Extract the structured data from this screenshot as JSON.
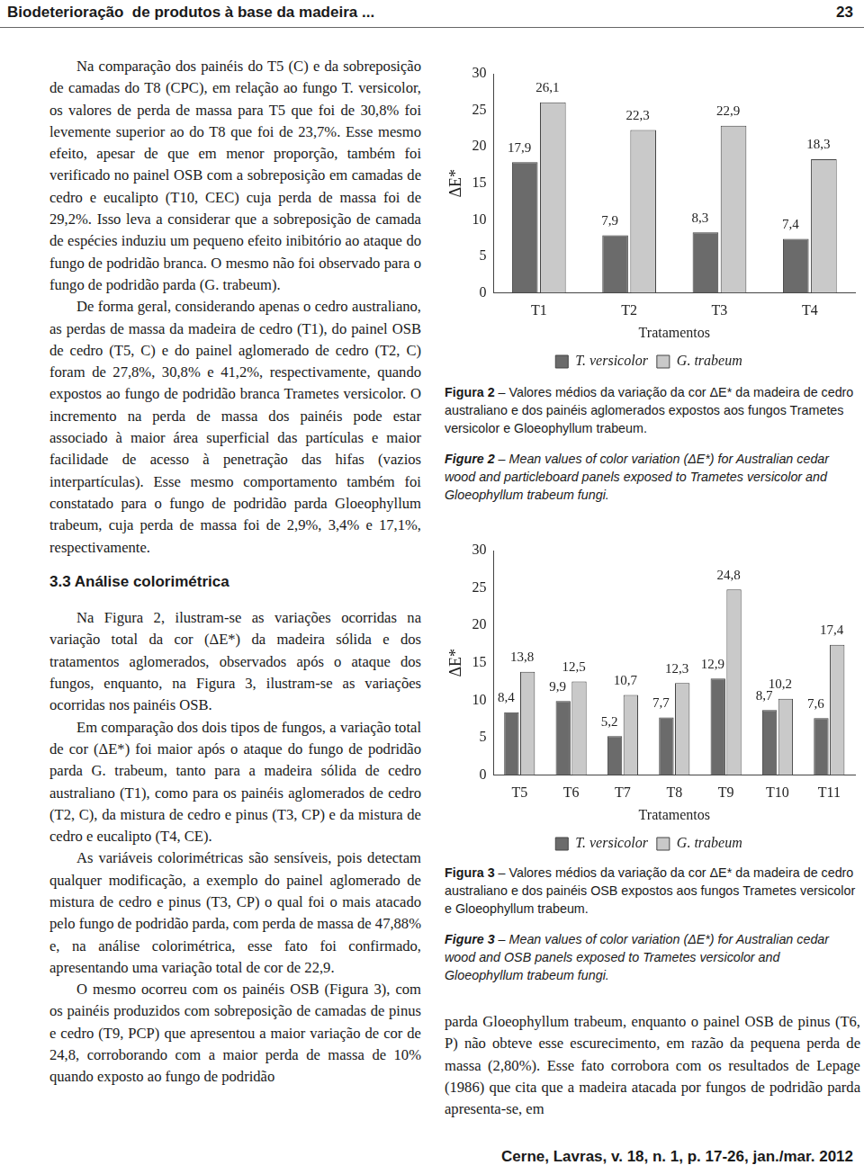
{
  "header": {
    "title": "Biodeterioração  de produtos à base da madeira ...",
    "page": "23"
  },
  "left_column": {
    "paragraphs_before": [
      "Na comparação dos painéis do T5 (C) e da sobreposição de camadas do T8 (CPC), em relação ao fungo T. versicolor, os valores de perda de massa para T5 que foi de 30,8% foi levemente superior ao do T8 que foi de 23,7%. Esse mesmo efeito, apesar de que em menor proporção, também foi verificado no painel OSB com a sobreposição em camadas de cedro e eucalipto (T10, CEC) cuja perda de massa foi de 29,2%. Isso leva a considerar que a sobreposição de camada de espécies induziu um pequeno efeito inibitório ao ataque do fungo de podridão branca. O mesmo não foi observado para o fungo de podridão parda (G. trabeum).",
      "De forma geral, considerando apenas o cedro australiano, as perdas de massa da madeira de cedro (T1), do painel OSB de cedro (T5, C) e do painel aglomerado de cedro (T2, C) foram de 27,8%, 30,8% e 41,2%, respectivamente, quando expostos ao fungo de podridão branca Trametes versicolor. O incremento na perda de massa dos painéis pode estar associado à maior área superficial das partículas e maior facilidade de acesso à penetração das hifas (vazios interpartículas). Esse mesmo comportamento também foi constatado para o fungo de podridão parda Gloeophyllum trabeum, cuja perda de massa foi de 2,9%, 3,4% e 17,1%, respectivamente."
    ],
    "heading": "3.3 Análise colorimétrica",
    "paragraphs_after": [
      "Na Figura 2, ilustram-se as variações ocorridas na variação total da cor (ΔE*) da madeira sólida e dos tratamentos aglomerados, observados após o ataque dos fungos, enquanto, na Figura 3, ilustram-se as variações ocorridas nos painéis OSB.",
      "Em comparação dos dois tipos de fungos, a variação total de cor (ΔE*) foi maior após o ataque do fungo de podridão parda G. trabeum, tanto para a madeira sólida de cedro australiano (T1), como para os painéis aglomerados de cedro (T2, C), da mistura de cedro e pinus (T3, CP) e da mistura de cedro e eucalipto (T4, CE).",
      "As variáveis colorimétricas são sensíveis, pois detectam qualquer modificação, a exemplo do painel aglomerado de mistura de cedro e pinus (T3, CP) o qual foi o mais atacado pelo fungo de podridão parda, com perda de massa de 47,88% e, na análise colorimétrica, esse fato foi confirmado, apresentando uma variação total de cor de 22,9.",
      "O mesmo ocorreu com os painéis OSB (Figura 3), com os painéis produzidos com sobreposição de camadas de pinus e cedro (T9, PCP) que apresentou a maior variação de cor de 24,8, corroborando com a maior perda de massa de 10% quando exposto ao fungo de podridão"
    ]
  },
  "chart_data": [
    {
      "type": "bar",
      "x_label": "Tratamentos",
      "y_label": "ΔE*",
      "categories": [
        "T1",
        "T2",
        "T3",
        "T4"
      ],
      "series": [
        {
          "name": "T. versicolor",
          "color": "#6b6b6b",
          "values": [
            17.9,
            7.9,
            8.3,
            7.4
          ],
          "value_labels": [
            "17,9",
            "7,9",
            "8,3",
            "7,4"
          ]
        },
        {
          "name": "G. trabeum",
          "color": "#c9c9c9",
          "values": [
            26.1,
            22.3,
            22.9,
            18.3
          ],
          "value_labels": [
            "26,1",
            "22,3",
            "22,9",
            "18,3"
          ]
        }
      ],
      "ylim": [
        0,
        30
      ],
      "yticks": [
        0,
        5,
        10,
        15,
        20,
        25,
        30
      ],
      "grid": false,
      "legend": "bottom",
      "data_labels": true
    },
    {
      "type": "bar",
      "x_label": "Tratamentos",
      "y_label": "ΔE*",
      "categories": [
        "T5",
        "T6",
        "T7",
        "T8",
        "T9",
        "T10",
        "T11"
      ],
      "series": [
        {
          "name": "T. versicolor",
          "color": "#6b6b6b",
          "values": [
            8.4,
            9.9,
            5.2,
            7.7,
            12.9,
            8.7,
            7.6
          ],
          "value_labels": [
            "8,4",
            "9,9",
            "5,2",
            "7,7",
            "12,9",
            "8,7",
            "7,6"
          ]
        },
        {
          "name": "G. trabeum",
          "color": "#c9c9c9",
          "values": [
            13.8,
            12.5,
            10.7,
            12.3,
            24.8,
            10.2,
            17.4
          ],
          "value_labels": [
            "13,8",
            "12,5",
            "10,7",
            "12,3",
            "24,8",
            "10,2",
            "17,4"
          ]
        }
      ],
      "ylim": [
        0,
        30
      ],
      "yticks": [
        0,
        5,
        10,
        15,
        20,
        25,
        30
      ],
      "grid": false,
      "legend": "bottom",
      "data_labels": true
    }
  ],
  "captions": [
    {
      "label": "Figura 2",
      "text": " – Valores médios da variação da cor ΔE* da madeira de cedro australiano e dos painéis aglomerados expostos aos fungos Trametes versicolor e Gloeophyllum trabeum.",
      "label_en": "Figure 2",
      "text_en": " – Mean values of color variation (ΔE*) for Australian cedar wood and particleboard panels exposed to Trametes versicolor and Gloeophyllum trabeum fungi."
    },
    {
      "label": "Figura 3",
      "text": " – Valores médios da variação da cor ΔE* da madeira de cedro australiano e dos painéis OSB expostos aos fungos Trametes versicolor e Gloeophyllum trabeum.",
      "label_en": "Figure 3",
      "text_en": " – Mean values of color variation (ΔE*) for Australian cedar wood and OSB panels exposed to Trametes versicolor and Gloeophyllum trabeum fungi."
    }
  ],
  "right_column_text": "parda Gloeophyllum trabeum, enquanto o painel OSB de pinus (T6, P) não obteve esse escurecimento, em razão da pequena perda de massa (2,80%). Esse fato corrobora com os resultados de Lepage (1986) que cita que a madeira atacada por fungos de podridão parda apresenta-se, em",
  "footer": "Cerne, Lavras, v. 18, n. 1, p. 17-26, jan./mar. 2012"
}
